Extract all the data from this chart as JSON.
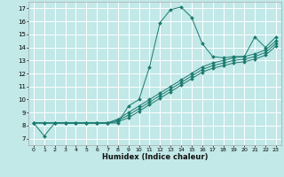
{
  "xlabel": "Humidex (Indice chaleur)",
  "ylabel": "",
  "bg_color": "#c2e8e8",
  "grid_color": "#ffffff",
  "line_color": "#1a7a6e",
  "xlim": [
    -0.5,
    23.5
  ],
  "ylim": [
    6.5,
    17.5
  ],
  "xticks": [
    0,
    1,
    2,
    3,
    4,
    5,
    6,
    7,
    8,
    9,
    10,
    11,
    12,
    13,
    14,
    15,
    16,
    17,
    18,
    19,
    20,
    21,
    22,
    23
  ],
  "yticks": [
    7,
    8,
    9,
    10,
    11,
    12,
    13,
    14,
    15,
    16,
    17
  ],
  "lines": [
    {
      "x": [
        0,
        1,
        2,
        3,
        4,
        5,
        6,
        7,
        8,
        9,
        10,
        11,
        12,
        13,
        14,
        15,
        16,
        17,
        18,
        19,
        20,
        21,
        22,
        23
      ],
      "y": [
        8.2,
        7.2,
        8.2,
        8.2,
        8.2,
        8.2,
        8.2,
        8.2,
        8.2,
        9.5,
        10.0,
        12.5,
        15.9,
        16.9,
        17.1,
        16.3,
        14.3,
        13.3,
        13.2,
        13.3,
        13.3,
        14.8,
        14.0,
        14.8
      ],
      "marker": "D",
      "markersize": 2.0
    },
    {
      "x": [
        0,
        1,
        2,
        3,
        4,
        5,
        6,
        7,
        8,
        9,
        10,
        11,
        12,
        13,
        14,
        15,
        16,
        17,
        18,
        19,
        20,
        21,
        22,
        23
      ],
      "y": [
        8.2,
        8.2,
        8.2,
        8.2,
        8.2,
        8.2,
        8.2,
        8.2,
        8.5,
        9.0,
        9.5,
        10.0,
        10.5,
        11.0,
        11.5,
        12.0,
        12.5,
        12.8,
        13.0,
        13.2,
        13.3,
        13.5,
        13.8,
        14.5
      ],
      "marker": "D",
      "markersize": 2.0
    },
    {
      "x": [
        0,
        1,
        2,
        3,
        4,
        5,
        6,
        7,
        8,
        9,
        10,
        11,
        12,
        13,
        14,
        15,
        16,
        17,
        18,
        19,
        20,
        21,
        22,
        23
      ],
      "y": [
        8.2,
        8.2,
        8.2,
        8.2,
        8.2,
        8.2,
        8.2,
        8.2,
        8.4,
        8.8,
        9.3,
        9.8,
        10.3,
        10.8,
        11.3,
        11.8,
        12.3,
        12.6,
        12.8,
        13.0,
        13.1,
        13.3,
        13.6,
        14.3
      ],
      "marker": "D",
      "markersize": 2.0
    },
    {
      "x": [
        0,
        1,
        2,
        3,
        4,
        5,
        6,
        7,
        8,
        9,
        10,
        11,
        12,
        13,
        14,
        15,
        16,
        17,
        18,
        19,
        20,
        21,
        22,
        23
      ],
      "y": [
        8.2,
        8.2,
        8.2,
        8.2,
        8.2,
        8.2,
        8.2,
        8.2,
        8.3,
        8.6,
        9.1,
        9.6,
        10.1,
        10.6,
        11.1,
        11.6,
        12.1,
        12.4,
        12.6,
        12.8,
        12.9,
        13.1,
        13.4,
        14.1
      ],
      "marker": "D",
      "markersize": 2.0
    }
  ],
  "figwidth": 3.2,
  "figheight": 2.0,
  "dpi": 100
}
